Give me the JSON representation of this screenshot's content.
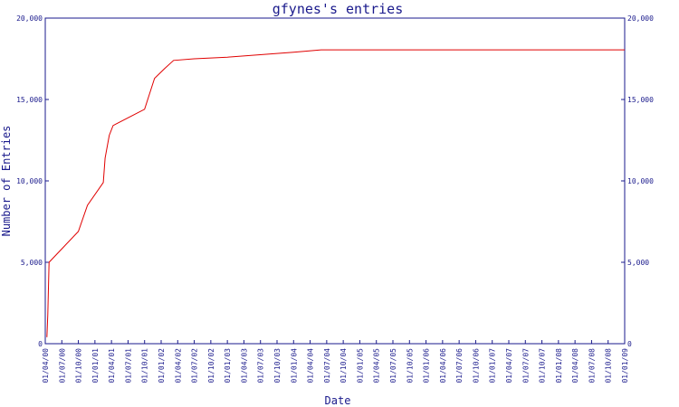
{
  "chart_data": {
    "type": "line",
    "title": "gfynes's entries",
    "xlabel": "Date",
    "ylabel": "Number of Entries",
    "ylim": [
      0,
      20000
    ],
    "y_ticks": [
      0,
      5000,
      10000,
      15000,
      20000
    ],
    "y_tick_labels": [
      "0",
      "5,000",
      "10,000",
      "15,000",
      "20,000"
    ],
    "y_axis_right": true,
    "grid": false,
    "x_ticks": [
      "01/04/00",
      "01/07/00",
      "01/10/00",
      "01/01/01",
      "01/04/01",
      "01/07/01",
      "01/10/01",
      "01/01/02",
      "01/04/02",
      "01/07/02",
      "01/10/02",
      "01/01/03",
      "01/04/03",
      "01/07/03",
      "01/10/03",
      "01/01/04",
      "01/04/04",
      "01/07/04",
      "01/10/04",
      "01/01/05",
      "01/04/05",
      "01/07/05",
      "01/10/05",
      "01/01/06",
      "01/04/06",
      "01/07/06",
      "01/10/06",
      "01/01/07",
      "01/04/07",
      "01/07/07",
      "01/10/07",
      "01/01/08",
      "01/04/08",
      "01/07/08",
      "01/10/08",
      "01/01/09"
    ],
    "x_range": [
      "2000-04-01",
      "2009-01-01"
    ],
    "series": [
      {
        "color": "#e00000",
        "points": [
          {
            "x": "2000-04-10",
            "y": 400
          },
          {
            "x": "2000-04-15",
            "y": 1800
          },
          {
            "x": "2000-04-22",
            "y": 5000
          },
          {
            "x": "2000-10-01",
            "y": 6900
          },
          {
            "x": "2000-11-20",
            "y": 8500
          },
          {
            "x": "2001-02-15",
            "y": 9900
          },
          {
            "x": "2001-02-25",
            "y": 11400
          },
          {
            "x": "2001-03-20",
            "y": 12800
          },
          {
            "x": "2001-04-10",
            "y": 13400
          },
          {
            "x": "2001-10-01",
            "y": 14400
          },
          {
            "x": "2001-11-25",
            "y": 16300
          },
          {
            "x": "2002-01-20",
            "y": 16900
          },
          {
            "x": "2002-03-10",
            "y": 17400
          },
          {
            "x": "2002-07-01",
            "y": 17500
          },
          {
            "x": "2003-01-01",
            "y": 17600
          },
          {
            "x": "2003-07-01",
            "y": 17750
          },
          {
            "x": "2004-01-01",
            "y": 17900
          },
          {
            "x": "2004-06-01",
            "y": 18050
          },
          {
            "x": "2009-01-01",
            "y": 18050
          }
        ]
      }
    ]
  },
  "colors": {
    "axis": "#1a1a8c",
    "line": "#e00000",
    "background": "#ffffff"
  }
}
